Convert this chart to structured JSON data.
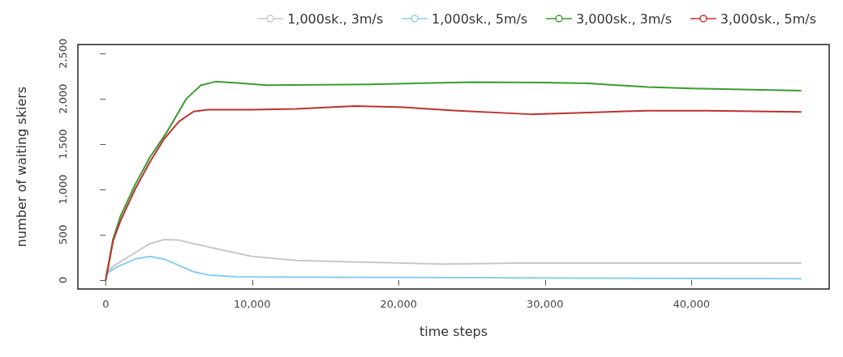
{
  "chart_data": {
    "type": "line",
    "xlabel": "time steps",
    "ylabel": "number of waiting skiers",
    "xlim": [
      -1900,
      49400
    ],
    "ylim": [
      -100,
      2600
    ],
    "xticks": [
      0,
      {
        "value": 10000,
        "label": "10,000"
      },
      {
        "value": 20000,
        "label": "20,000"
      },
      {
        "value": 30000,
        "label": "30,000"
      },
      {
        "value": 40000,
        "label": "40,000"
      }
    ],
    "yticks": [
      0,
      500,
      {
        "value": 1000,
        "label": "1,000"
      },
      {
        "value": 1500,
        "label": "1,500"
      },
      {
        "value": 2000,
        "label": "2,000"
      },
      {
        "value": 2500,
        "label": "2,500"
      }
    ],
    "grid": false,
    "legend": "top right",
    "series": [
      {
        "name": "1,000sk., 3m/s",
        "color": "#c8c8c8",
        "x": [
          0,
          500,
          1000,
          2000,
          3000,
          4000,
          5000,
          6000,
          8000,
          10000,
          13000,
          18000,
          23000,
          28000,
          35000,
          47500
        ],
        "values": [
          80,
          150,
          200,
          300,
          400,
          445,
          440,
          400,
          330,
          260,
          215,
          195,
          175,
          185,
          185,
          185
        ]
      },
      {
        "name": "1,000sk., 5m/s",
        "color": "#87cef0",
        "x": [
          0,
          500,
          1000,
          2000,
          3000,
          4000,
          5000,
          6000,
          7000,
          9000,
          15000,
          25000,
          35000,
          47500
        ],
        "values": [
          60,
          120,
          160,
          230,
          260,
          230,
          160,
          90,
          55,
          35,
          30,
          25,
          18,
          15
        ]
      },
      {
        "name": "3,000sk., 3m/s",
        "color": "#3c9a32",
        "x": [
          0,
          500,
          1000,
          2000,
          3000,
          4200,
          5500,
          6500,
          7500,
          9000,
          11000,
          18000,
          25000,
          30000,
          33000,
          37000,
          40000,
          47500
        ],
        "values": [
          0,
          450,
          700,
          1050,
          1350,
          1640,
          2000,
          2150,
          2190,
          2175,
          2150,
          2160,
          2185,
          2180,
          2170,
          2130,
          2115,
          2090
        ]
      },
      {
        "name": "3,000sk., 5m/s",
        "color": "#c03030",
        "x": [
          0,
          500,
          1000,
          2000,
          3000,
          4000,
          5000,
          6000,
          7000,
          10000,
          13000,
          17000,
          20000,
          24000,
          29000,
          33000,
          37000,
          41000,
          47500
        ],
        "values": [
          0,
          430,
          650,
          1000,
          1300,
          1560,
          1750,
          1860,
          1880,
          1880,
          1890,
          1920,
          1910,
          1870,
          1830,
          1850,
          1870,
          1870,
          1855
        ]
      }
    ]
  }
}
